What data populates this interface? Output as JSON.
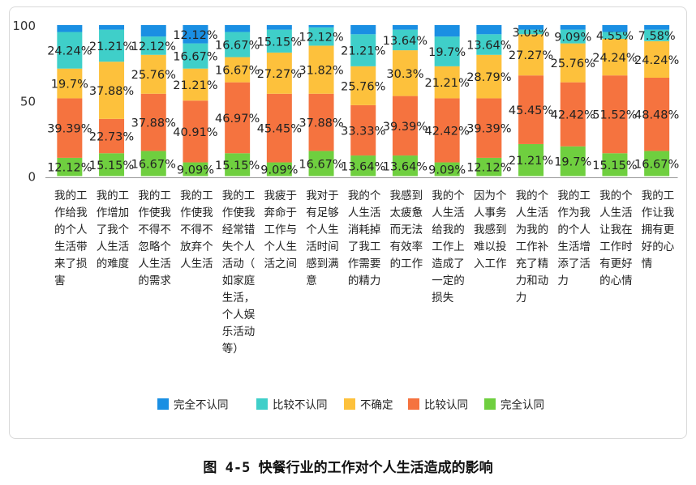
{
  "caption": "图 4-5 快餐行业的工作对个人生活造成的影响",
  "chart_data": {
    "type": "bar",
    "stacked": true,
    "ylim": [
      0,
      100
    ],
    "yticks": [
      "0",
      "50",
      "100"
    ],
    "legend_position": "bottom",
    "categories": [
      "我的工作给我的个人生活带来了损害",
      "我的工作增加了我个人生活的难度",
      "我的工作使我不得不忽略个人生活的需求",
      "我的工作使我不得不放弃个人生活",
      "我的工作使我经常错失个人活动（如家庭生活，个人娱乐活动等）",
      "我疲于奔命于工作与个人生活之间",
      "我对于有足够个人生活时间感到满意",
      "我的个人生活消耗掉了我工作需要的精力",
      "我感到太疲惫而无法有效率的工作",
      "我的个人生活给我的工作上造成了一定的损失",
      "因为个人事务我感到难以投入工作",
      "我的个人生活为我的工作补充了精力和动力",
      "我的工作为我的个人生活增添了活力",
      "我的个人生活让我在工作时有更好的心情",
      "我的工作让我拥有更好的心情"
    ],
    "category_lines": [
      [
        "我的工",
        "作给我",
        "的个人",
        "生活带",
        "来了损",
        "害"
      ],
      [
        "我的工",
        "作增加",
        "了我个",
        "人生活",
        "的难度"
      ],
      [
        "我的工",
        "作使我",
        "不得不",
        "忽略个",
        "人生活",
        "的需求"
      ],
      [
        "我的工",
        "作使我",
        "不得不",
        "放弃个",
        "人生活"
      ],
      [
        "我的工",
        "作使我",
        "经常错",
        "失个人",
        "活动（",
        "如家庭",
        "生活，",
        "个人娱",
        "乐活动",
        "等）"
      ],
      [
        "我疲于",
        "奔命于",
        "工作与",
        "个人生",
        "活之间"
      ],
      [
        "我对于",
        "有足够",
        "个人生",
        "活时间",
        "感到满",
        "意"
      ],
      [
        "我的个",
        "人生活",
        "消耗掉",
        "了我工",
        "作需要",
        "的精力"
      ],
      [
        "我感到",
        "太疲惫",
        "而无法",
        "有效率",
        "的工作"
      ],
      [
        "我的个",
        "人生活",
        "给我的",
        "工作上",
        "造成了",
        "一定的",
        "损失"
      ],
      [
        "因为个",
        "人事务",
        "我感到",
        "难以投",
        "入工作"
      ],
      [
        "我的个",
        "人生活",
        "为我的",
        "工作补",
        "充了精",
        "力和动",
        "力"
      ],
      [
        "我的工",
        "作为我",
        "的个人",
        "生活增",
        "添了活",
        "力"
      ],
      [
        "我的个",
        "人生活",
        "让我在",
        "工作时",
        "有更好",
        "的心情"
      ],
      [
        "我的工",
        "作让我",
        "拥有更",
        "好的心",
        "情"
      ]
    ],
    "series": [
      {
        "name": "完全认同",
        "color": "#6fcf3f",
        "values": [
          12.12,
          15.15,
          16.67,
          9.09,
          15.15,
          9.09,
          16.67,
          13.64,
          13.64,
          9.09,
          12.12,
          21.21,
          19.7,
          15.15,
          16.67
        ],
        "labels": [
          "12.12%",
          "15.15%",
          "16.67%",
          "9.09%",
          "15.15%",
          "9.09%",
          "16.67%",
          "13.64%",
          "13.64%",
          "9.09%",
          "12.12%",
          "21.21%",
          "19.7%",
          "15.15%",
          "16.67%"
        ]
      },
      {
        "name": "比较认同",
        "color": "#f5733f",
        "values": [
          39.39,
          22.73,
          37.88,
          40.91,
          46.97,
          45.45,
          37.88,
          33.33,
          39.39,
          42.42,
          39.39,
          45.45,
          42.42,
          51.52,
          48.48
        ],
        "labels": [
          "39.39%",
          "22.73%",
          "37.88%",
          "40.91%",
          "46.97%",
          "45.45%",
          "37.88%",
          "33.33%",
          "39.39%",
          "42.42%",
          "39.39%",
          "45.45%",
          "42.42%",
          "51.52%",
          "48.48%"
        ]
      },
      {
        "name": "不确定",
        "color": "#fdc13c",
        "values": [
          19.7,
          37.88,
          25.76,
          21.21,
          16.67,
          27.27,
          31.82,
          25.76,
          30.3,
          21.21,
          28.79,
          27.27,
          25.76,
          24.24,
          24.24
        ],
        "labels": [
          "19.7%",
          "37.88%",
          "25.76%",
          "21.21%",
          "16.67%",
          "27.27%",
          "31.82%",
          "25.76%",
          "30.3%",
          "21.21%",
          "28.79%",
          "27.27%",
          "25.76%",
          "24.24%",
          "24.24%"
        ]
      },
      {
        "name": "比较不认同",
        "color": "#3fcfc9",
        "values": [
          24.24,
          21.21,
          12.12,
          16.67,
          16.67,
          15.15,
          12.12,
          21.21,
          13.64,
          19.7,
          13.64,
          3.03,
          9.09,
          4.55,
          7.58
        ],
        "labels": [
          "24.24%",
          "21.21%",
          "12.12%",
          "16.67%",
          "16.67%",
          "15.15%",
          "12.12%",
          "21.21%",
          "13.64%",
          "19.7%",
          "13.64%",
          "3.03%",
          "9.09%",
          "4.55%",
          "7.58%"
        ]
      },
      {
        "name": "完全不认同",
        "color": "#1a8fe3",
        "values": [
          4.55,
          3.03,
          7.58,
          12.12,
          4.55,
          3.03,
          1.52,
          6.06,
          3.03,
          7.58,
          6.06,
          3.03,
          3.03,
          4.55,
          3.03
        ],
        "labels": [
          "",
          "",
          "",
          "12.12%",
          "",
          "",
          "",
          "",
          "",
          "",
          "",
          "",
          "",
          "",
          ""
        ]
      }
    ],
    "legend_order": [
      "完全不认同",
      "比较不认同",
      "不确定",
      "比较认同",
      "完全认同"
    ]
  }
}
